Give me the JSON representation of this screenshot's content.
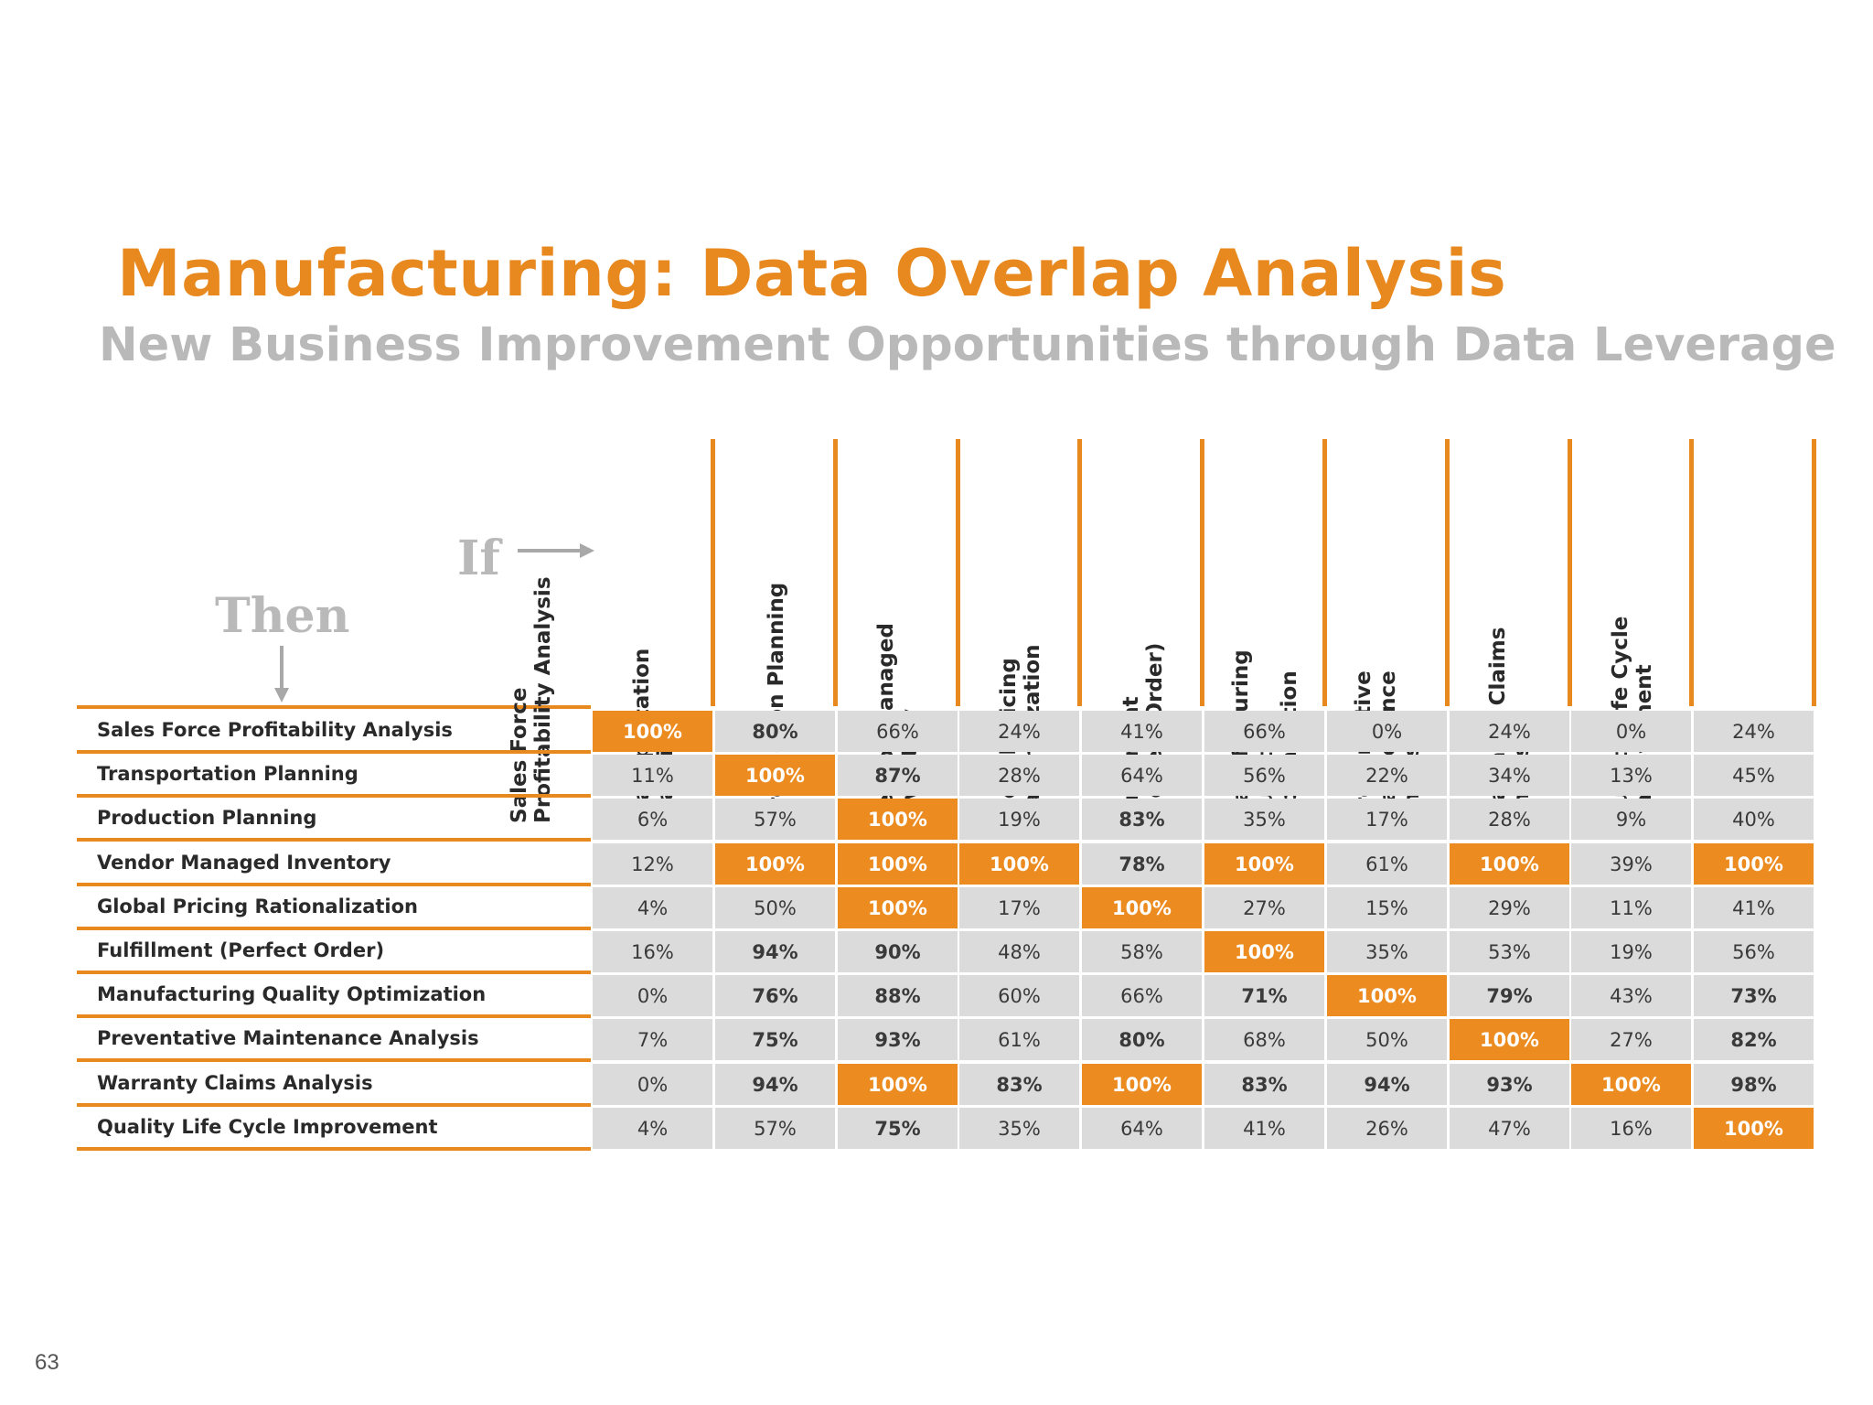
{
  "title": "Manufacturing: Data Overlap Analysis",
  "subtitle": "New Business Improvement Opportunities through Data Leverage",
  "if_label": "If",
  "then_label": "Then",
  "page_number": "63",
  "colors": {
    "accent": "#e8891f",
    "highlight": "#ec8b1f",
    "cell": "#dcdbdc",
    "muted": "#b9b9b9"
  },
  "columns": [
    "Sales Force\nProfitability Analysis",
    "Transportation Planning",
    "Production Planning",
    "Vendor Managed\nInventory",
    "Global Pricing\nRationalization",
    "Fulfillment\n(Perfect Order)",
    "Manufacturing Quality\nOptimization",
    "Preventative\nMaintenance\nAnalysis",
    "Warranty Claims\nAnalysis",
    "Quality Life Cycle\nImprovement"
  ],
  "rows": [
    {
      "label": "Sales Force Profitability Analysis",
      "values": [
        "100%",
        "80%",
        "66%",
        "24%",
        "41%",
        "66%",
        "0%",
        "24%",
        "0%",
        "24%"
      ],
      "highlight": [
        0
      ],
      "bold": [
        1
      ]
    },
    {
      "label": "Transportation Planning",
      "values": [
        "11%",
        "100%",
        "87%",
        "28%",
        "64%",
        "56%",
        "22%",
        "34%",
        "13%",
        "45%"
      ],
      "highlight": [
        1
      ],
      "bold": [
        2
      ]
    },
    {
      "label": "Production Planning",
      "values": [
        "6%",
        "57%",
        "100%",
        "19%",
        "83%",
        "35%",
        "17%",
        "28%",
        "9%",
        "40%"
      ],
      "highlight": [
        2
      ],
      "bold": [
        4
      ]
    },
    {
      "label": "Vendor Managed Inventory",
      "values": [
        "12%",
        "100%",
        "100%",
        "100%",
        "78%",
        "100%",
        "61%",
        "100%",
        "39%",
        "100%"
      ],
      "highlight": [
        1,
        2,
        3,
        5,
        7,
        9
      ],
      "bold": [
        4
      ]
    },
    {
      "label": "Global Pricing Rationalization",
      "values": [
        "4%",
        "50%",
        "100%",
        "17%",
        "100%",
        "27%",
        "15%",
        "29%",
        "11%",
        "41%"
      ],
      "highlight": [
        2,
        4
      ],
      "bold": []
    },
    {
      "label": "Fulfillment (Perfect Order)",
      "values": [
        "16%",
        "94%",
        "90%",
        "48%",
        "58%",
        "100%",
        "35%",
        "53%",
        "19%",
        "56%"
      ],
      "highlight": [
        5
      ],
      "bold": [
        1,
        2
      ]
    },
    {
      "label": "Manufacturing Quality Optimization",
      "values": [
        "0%",
        "76%",
        "88%",
        "60%",
        "66%",
        "71%",
        "100%",
        "79%",
        "43%",
        "73%"
      ],
      "highlight": [
        6
      ],
      "bold": [
        1,
        2,
        5,
        7,
        9
      ]
    },
    {
      "label": "Preventative Maintenance Analysis",
      "values": [
        "7%",
        "75%",
        "93%",
        "61%",
        "80%",
        "68%",
        "50%",
        "100%",
        "27%",
        "82%"
      ],
      "highlight": [
        7
      ],
      "bold": [
        1,
        2,
        4,
        9
      ]
    },
    {
      "label": "Warranty Claims Analysis",
      "values": [
        "0%",
        "94%",
        "100%",
        "83%",
        "100%",
        "83%",
        "94%",
        "93%",
        "100%",
        "98%"
      ],
      "highlight": [
        2,
        4,
        8
      ],
      "bold": [
        1,
        3,
        5,
        6,
        7,
        9
      ]
    },
    {
      "label": "Quality Life Cycle Improvement",
      "values": [
        "4%",
        "57%",
        "75%",
        "35%",
        "64%",
        "41%",
        "26%",
        "47%",
        "16%",
        "100%"
      ],
      "highlight": [
        9
      ],
      "bold": [
        2
      ]
    }
  ]
}
